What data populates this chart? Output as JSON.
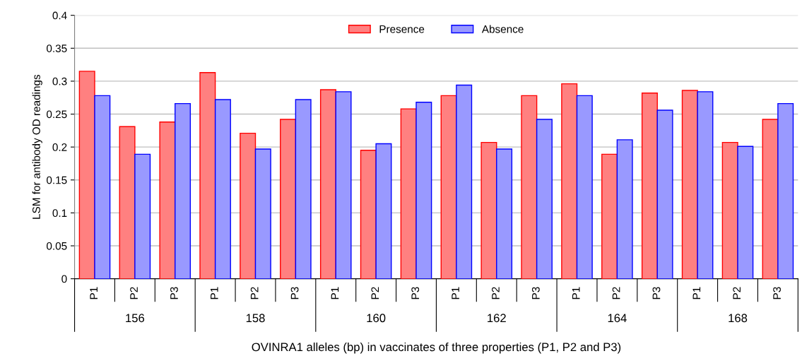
{
  "chart_data": {
    "type": "bar",
    "xlabel": "OVINRA1 alleles (bp) in vaccinates of three properties (P1, P2 and P3)",
    "ylabel": "LSM for antibody OD readings",
    "categories": [
      "P1",
      "P2",
      "P3",
      "P1",
      "P2",
      "P3",
      "P1",
      "P2",
      "P3",
      "P1",
      "P2",
      "P3",
      "P1",
      "P2",
      "P3",
      "P1",
      "P2",
      "P3"
    ],
    "annotations": [
      "156",
      "158",
      "160",
      "162",
      "164",
      "168"
    ],
    "series": [
      {
        "name": "Presence",
        "color": "#ff8080",
        "values": [
          0.315,
          0.231,
          0.238,
          0.313,
          0.221,
          0.242,
          0.287,
          0.195,
          0.258,
          0.278,
          0.207,
          0.278,
          0.296,
          0.189,
          0.282,
          0.286,
          0.207,
          0.242
        ]
      },
      {
        "name": "Absence",
        "color": "#9999ff",
        "values": [
          0.278,
          0.189,
          0.266,
          0.272,
          0.197,
          0.272,
          0.284,
          0.205,
          0.268,
          0.294,
          0.197,
          0.242,
          0.278,
          0.211,
          0.256,
          0.284,
          0.201,
          0.266
        ]
      }
    ],
    "ylim": [
      0,
      0.4
    ],
    "yticks": [
      0,
      0.05,
      0.1,
      0.15,
      0.2,
      0.25,
      0.3,
      0.35,
      0.4
    ],
    "grid": "y",
    "legend": "top"
  }
}
